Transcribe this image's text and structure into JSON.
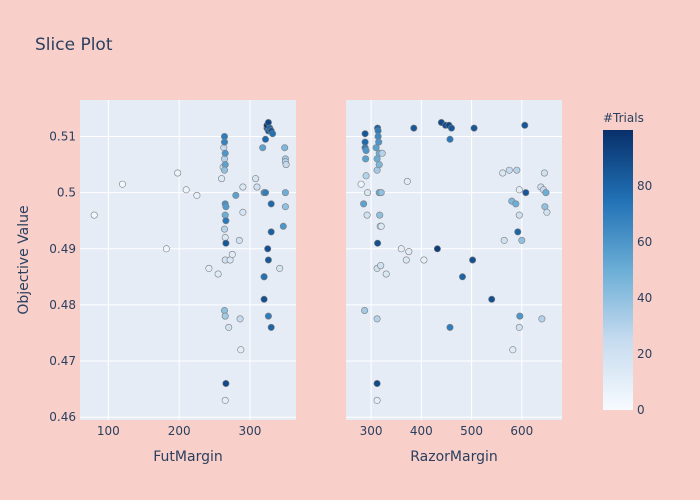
{
  "chart_data": {
    "type": "scatter",
    "title": "Slice Plot",
    "ylabel": "Objective Value",
    "ylim": [
      0.4595,
      0.5165
    ],
    "yticks": [
      0.46,
      0.47,
      0.48,
      0.49,
      0.5,
      0.51
    ],
    "ytick_labels": [
      "0.46",
      "0.47",
      "0.48",
      "0.49",
      "0.5",
      "0.51"
    ],
    "colorbar": {
      "title": "#Trials",
      "range": [
        0,
        100
      ],
      "ticks": [
        0,
        20,
        40,
        60,
        80
      ],
      "tick_labels": [
        "0",
        "20",
        "40",
        "60",
        "80"
      ],
      "colorscale": [
        "#f7fbff",
        "#c6dbef",
        "#6baed6",
        "#2171b5",
        "#08306b"
      ]
    },
    "panels": [
      {
        "xlabel": "FutMargin",
        "xlim": [
          60,
          365
        ],
        "xticks": [
          100,
          200,
          300
        ],
        "xtick_labels": [
          "100",
          "200",
          "300"
        ],
        "points": [
          [
            80,
            0.496,
            2
          ],
          [
            120,
            0.5015,
            3
          ],
          [
            182,
            0.49,
            4
          ],
          [
            198,
            0.5035,
            5
          ],
          [
            210,
            0.5005,
            6
          ],
          [
            225,
            0.4995,
            8
          ],
          [
            242,
            0.4865,
            10
          ],
          [
            255,
            0.4855,
            12
          ],
          [
            260,
            0.5025,
            14
          ],
          [
            262,
            0.5045,
            18
          ],
          [
            263,
            0.508,
            25
          ],
          [
            264,
            0.506,
            30
          ],
          [
            264,
            0.51,
            70
          ],
          [
            264,
            0.509,
            68
          ],
          [
            265,
            0.507,
            60
          ],
          [
            265,
            0.505,
            55
          ],
          [
            264,
            0.504,
            40
          ],
          [
            265,
            0.492,
            15
          ],
          [
            266,
            0.491,
            85
          ],
          [
            265,
            0.498,
            62
          ],
          [
            266,
            0.4975,
            58
          ],
          [
            265,
            0.496,
            50
          ],
          [
            266,
            0.495,
            72
          ],
          [
            264,
            0.4935,
            30
          ],
          [
            265,
            0.488,
            20
          ],
          [
            264,
            0.479,
            40
          ],
          [
            265,
            0.478,
            35
          ],
          [
            266,
            0.466,
            90
          ],
          [
            265,
            0.463,
            10
          ],
          [
            270,
            0.476,
            20
          ],
          [
            272,
            0.488,
            15
          ],
          [
            275,
            0.489,
            12
          ],
          [
            280,
            0.4995,
            55
          ],
          [
            285,
            0.4915,
            20
          ],
          [
            286,
            0.4775,
            25
          ],
          [
            287,
            0.472,
            10
          ],
          [
            290,
            0.4965,
            18
          ],
          [
            290,
            0.501,
            15
          ],
          [
            308,
            0.5025,
            18
          ],
          [
            310,
            0.501,
            20
          ],
          [
            318,
            0.508,
            55
          ],
          [
            320,
            0.5,
            60
          ],
          [
            322,
            0.5,
            70
          ],
          [
            320,
            0.485,
            75
          ],
          [
            320,
            0.481,
            88
          ],
          [
            322,
            0.5095,
            78
          ],
          [
            324,
            0.5115,
            85
          ],
          [
            324,
            0.512,
            98
          ],
          [
            326,
            0.5125,
            92
          ],
          [
            326,
            0.511,
            82
          ],
          [
            328,
            0.5115,
            80
          ],
          [
            330,
            0.511,
            88
          ],
          [
            332,
            0.5105,
            75
          ],
          [
            325,
            0.49,
            88
          ],
          [
            326,
            0.488,
            85
          ],
          [
            326,
            0.478,
            70
          ],
          [
            330,
            0.476,
            80
          ],
          [
            330,
            0.493,
            82
          ],
          [
            330,
            0.498,
            78
          ],
          [
            342,
            0.4865,
            18
          ],
          [
            347,
            0.494,
            60
          ],
          [
            349,
            0.508,
            45
          ],
          [
            350,
            0.5,
            50
          ],
          [
            350,
            0.4975,
            40
          ],
          [
            350,
            0.506,
            35
          ],
          [
            350,
            0.5055,
            30
          ],
          [
            351,
            0.505,
            25
          ],
          [
            320,
            0.485,
            75
          ]
        ]
      },
      {
        "xlabel": "RazorMargin",
        "xlim": [
          250,
          680
        ],
        "xticks": [
          300,
          400,
          500,
          600
        ],
        "xtick_labels": [
          "300",
          "400",
          "500",
          "600"
        ],
        "points": [
          [
            280,
            0.5015,
            5
          ],
          [
            285,
            0.498,
            55
          ],
          [
            287,
            0.479,
            35
          ],
          [
            288,
            0.508,
            70
          ],
          [
            288,
            0.5105,
            85
          ],
          [
            288,
            0.509,
            78
          ],
          [
            289,
            0.506,
            55
          ],
          [
            290,
            0.5075,
            60
          ],
          [
            290,
            0.503,
            30
          ],
          [
            292,
            0.496,
            20
          ],
          [
            293,
            0.5,
            15
          ],
          [
            310,
            0.508,
            55
          ],
          [
            312,
            0.506,
            50
          ],
          [
            312,
            0.504,
            35
          ],
          [
            313,
            0.491,
            88
          ],
          [
            312,
            0.4865,
            20
          ],
          [
            312,
            0.4775,
            30
          ],
          [
            312,
            0.466,
            90
          ],
          [
            312,
            0.463,
            10
          ],
          [
            313,
            0.5115,
            82
          ],
          [
            314,
            0.511,
            70
          ],
          [
            314,
            0.51,
            65
          ],
          [
            315,
            0.509,
            60
          ],
          [
            316,
            0.507,
            50
          ],
          [
            316,
            0.505,
            45
          ],
          [
            316,
            0.5,
            50
          ],
          [
            317,
            0.496,
            40
          ],
          [
            318,
            0.494,
            25
          ],
          [
            319,
            0.487,
            20
          ],
          [
            320,
            0.5,
            40
          ],
          [
            320,
            0.494,
            15
          ],
          [
            322,
            0.507,
            30
          ],
          [
            330,
            0.4855,
            15
          ],
          [
            360,
            0.49,
            10
          ],
          [
            370,
            0.488,
            15
          ],
          [
            375,
            0.4895,
            12
          ],
          [
            372,
            0.502,
            12
          ],
          [
            385,
            0.5115,
            85
          ],
          [
            405,
            0.488,
            8
          ],
          [
            432,
            0.49,
            95
          ],
          [
            440,
            0.5125,
            90
          ],
          [
            448,
            0.512,
            88
          ],
          [
            455,
            0.512,
            92
          ],
          [
            457,
            0.476,
            70
          ],
          [
            457,
            0.5095,
            72
          ],
          [
            460,
            0.5115,
            85
          ],
          [
            482,
            0.485,
            80
          ],
          [
            502,
            0.488,
            88
          ],
          [
            505,
            0.5115,
            85
          ],
          [
            540,
            0.481,
            88
          ],
          [
            565,
            0.4915,
            20
          ],
          [
            562,
            0.5035,
            15
          ],
          [
            575,
            0.504,
            25
          ],
          [
            580,
            0.4985,
            45
          ],
          [
            582,
            0.472,
            12
          ],
          [
            588,
            0.498,
            50
          ],
          [
            590,
            0.504,
            30
          ],
          [
            592,
            0.493,
            80
          ],
          [
            595,
            0.496,
            20
          ],
          [
            595,
            0.476,
            20
          ],
          [
            596,
            0.478,
            60
          ],
          [
            595,
            0.5005,
            10
          ],
          [
            600,
            0.4915,
            40
          ],
          [
            606,
            0.512,
            85
          ],
          [
            608,
            0.5,
            85
          ],
          [
            638,
            0.501,
            20
          ],
          [
            640,
            0.4775,
            30
          ],
          [
            643,
            0.5005,
            25
          ],
          [
            645,
            0.5035,
            20
          ],
          [
            646,
            0.4975,
            40
          ],
          [
            648,
            0.5,
            50
          ],
          [
            650,
            0.4965,
            20
          ]
        ]
      }
    ]
  }
}
